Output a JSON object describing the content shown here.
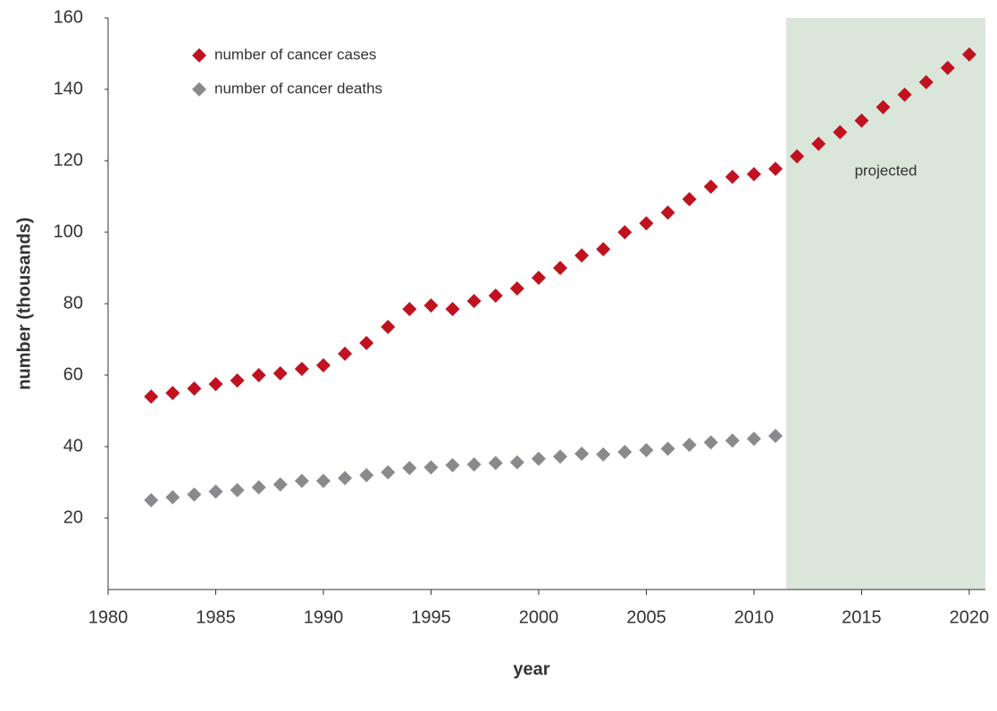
{
  "chart_data": {
    "type": "scatter",
    "xlabel": "year",
    "ylabel": "number (thousands)",
    "x": [
      1982,
      1983,
      1984,
      1985,
      1986,
      1987,
      1988,
      1989,
      1990,
      1991,
      1992,
      1993,
      1994,
      1995,
      1996,
      1997,
      1998,
      1999,
      2000,
      2001,
      2002,
      2003,
      2004,
      2005,
      2006,
      2007,
      2008,
      2009,
      2010,
      2011,
      2012,
      2013,
      2014,
      2015,
      2016,
      2017,
      2018,
      2019,
      2020
    ],
    "series": [
      {
        "name": "number of cancer cases",
        "color": "#c0121f",
        "values": [
          54,
          55,
          56.25,
          57.5,
          58.5,
          60,
          60.5,
          61.75,
          62.75,
          66,
          69,
          73.5,
          78.5,
          79.5,
          78.5,
          80.75,
          82.25,
          84.25,
          87.25,
          90,
          93.5,
          95.25,
          100,
          102.5,
          105.5,
          109.25,
          112.75,
          115.5,
          116.25,
          117.75,
          121.25,
          124.75,
          128,
          131.25,
          135,
          138.5,
          142,
          146,
          149.75
        ]
      },
      {
        "name": "number of cancer deaths",
        "color": "#8a8a8e",
        "values": [
          25,
          25.8,
          26.6,
          27.4,
          27.8,
          28.6,
          29.4,
          30.4,
          30.4,
          31.2,
          32,
          32.8,
          34,
          34.2,
          34.8,
          35,
          35.4,
          35.6,
          36.6,
          37.2,
          38,
          37.8,
          38.5,
          39,
          39.4,
          40.5,
          41.2,
          41.7,
          42.2,
          43,
          null,
          null,
          null,
          null,
          null,
          null,
          null,
          null,
          null
        ]
      }
    ],
    "xlim": [
      1980,
      2020.75
    ],
    "xticks": [
      1980,
      1985,
      1990,
      1995,
      2000,
      2005,
      2010,
      2015,
      2020
    ],
    "ylim": [
      0,
      160
    ],
    "yticks": [
      20,
      40,
      60,
      80,
      100,
      120,
      140,
      160
    ],
    "projection": {
      "start": 2011.5,
      "label": "projected",
      "color": "#dbe6db"
    },
    "legend": "upper left"
  }
}
